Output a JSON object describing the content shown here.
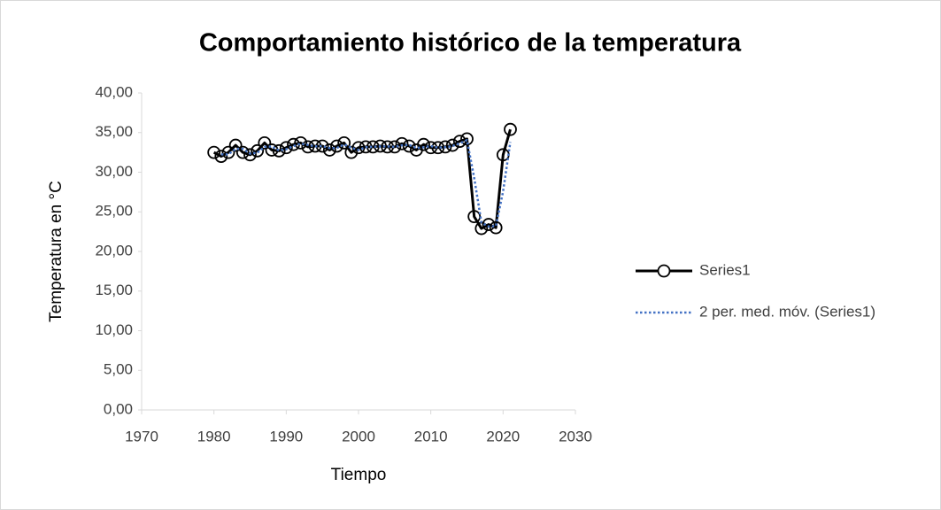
{
  "chart_data": {
    "type": "line",
    "title": "Comportamiento histórico de la temperatura",
    "x_label": "Tiempo",
    "y_label": "Temperatura en °C",
    "x": [
      1980,
      1981,
      1982,
      1983,
      1984,
      1985,
      1986,
      1987,
      1988,
      1989,
      1990,
      1991,
      1992,
      1993,
      1994,
      1995,
      1996,
      1997,
      1998,
      1999,
      2000,
      2001,
      2002,
      2003,
      2004,
      2005,
      2006,
      2007,
      2008,
      2009,
      2010,
      2011,
      2012,
      2013,
      2014,
      2015,
      2016,
      2017,
      2018,
      2019,
      2020,
      2021
    ],
    "series": [
      {
        "name": "Series1",
        "color": "#000000",
        "marker": "circle",
        "dash": "solid",
        "values": [
          32.5,
          32.0,
          32.5,
          33.4,
          32.5,
          32.2,
          32.7,
          33.7,
          32.8,
          32.7,
          33.1,
          33.5,
          33.7,
          33.2,
          33.3,
          33.3,
          32.8,
          33.3,
          33.7,
          32.5,
          33.1,
          33.2,
          33.2,
          33.3,
          33.2,
          33.2,
          33.6,
          33.3,
          32.8,
          33.5,
          33.1,
          33.1,
          33.2,
          33.4,
          33.9,
          34.2,
          24.4,
          22.9,
          23.4,
          23.0,
          32.2,
          35.4
        ]
      },
      {
        "name": "2 per. med. móv. (Series1)",
        "color": "#4472c4",
        "marker": "none",
        "dash": "dotted",
        "values": [
          null,
          32.25,
          32.25,
          32.95,
          32.95,
          32.35,
          32.45,
          33.2,
          33.25,
          32.75,
          32.9,
          33.3,
          33.6,
          33.45,
          33.25,
          33.3,
          33.05,
          33.05,
          33.5,
          33.1,
          32.8,
          33.15,
          33.2,
          33.25,
          33.25,
          33.2,
          33.4,
          33.45,
          33.05,
          33.15,
          33.3,
          33.1,
          33.15,
          33.3,
          33.65,
          34.05,
          29.3,
          23.65,
          23.15,
          23.2,
          27.6,
          33.8
        ]
      }
    ],
    "xlim": [
      1970,
      2030
    ],
    "xticks": [
      1970,
      1980,
      1990,
      2000,
      2010,
      2020,
      2030
    ],
    "ylim": [
      0,
      40
    ],
    "yticks": [
      {
        "value": 0,
        "label": "0,00"
      },
      {
        "value": 5,
        "label": "5,00"
      },
      {
        "value": 10,
        "label": "10,00"
      },
      {
        "value": 15,
        "label": "15,00"
      },
      {
        "value": 20,
        "label": "20,00"
      },
      {
        "value": 25,
        "label": "25,00"
      },
      {
        "value": 30,
        "label": "30,00"
      },
      {
        "value": 35,
        "label": "35,00"
      },
      {
        "value": 40,
        "label": "40,00"
      }
    ],
    "grid": false,
    "legend": "right"
  }
}
